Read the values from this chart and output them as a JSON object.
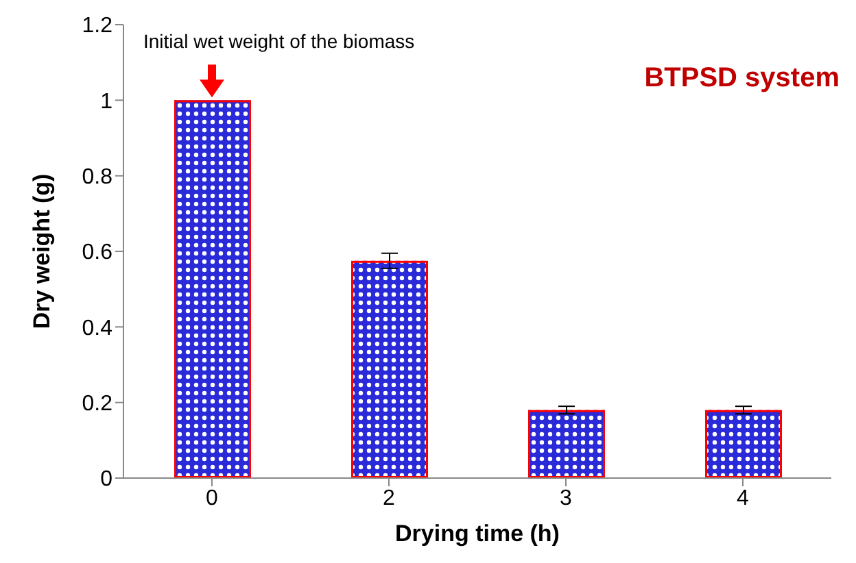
{
  "chart_data": {
    "type": "bar",
    "xlabel": "Drying time (h)",
    "ylabel": "Dry weight (g)",
    "categories": [
      "0",
      "2",
      "3",
      "4"
    ],
    "values": [
      1.0,
      0.575,
      0.18,
      0.18
    ],
    "errors": [
      null,
      0.02,
      0.01,
      0.01
    ],
    "color": "#2a2ad8",
    "ylim": [
      0,
      1.2
    ],
    "yticks": [
      0,
      0.2,
      0.4,
      0.6,
      0.8,
      1,
      1.2
    ],
    "grid": false,
    "annotations": [
      {
        "text": "Initial wet weight of the biomass",
        "x": "0",
        "y": 1
      },
      "BTPSD system"
    ]
  }
}
